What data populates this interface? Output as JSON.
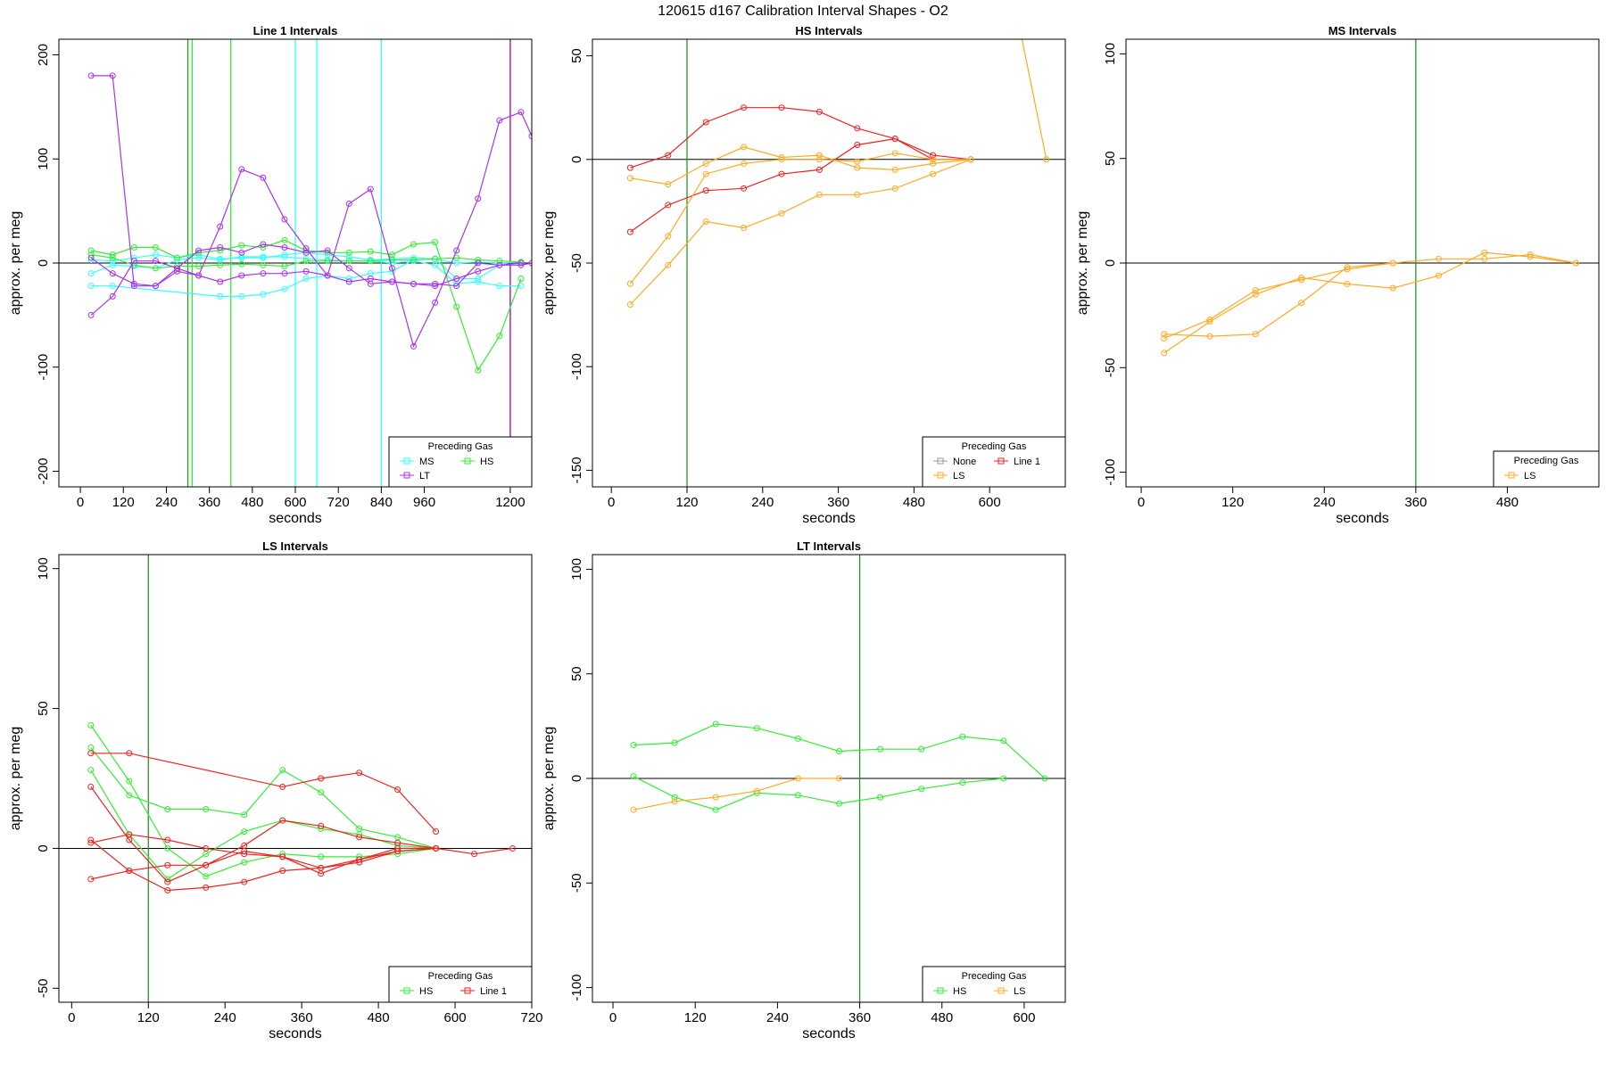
{
  "page_title": "120615   d167   Calibration Interval Shapes - O2",
  "colors": {
    "None": "#999999",
    "MS": "#33ffff",
    "HS": "#33ee33",
    "LT": "#aa33ee",
    "Line 1": "#ee2222",
    "LS": "#ffaa22",
    "vline_green": "#229922",
    "vline_cyan": "#33ffff",
    "vline_purple": "#aa00aa",
    "zero_line": "#000000"
  },
  "chart_data": [
    {
      "type": "line",
      "title": "Line 1 Intervals",
      "xlabel": "seconds",
      "ylabel": "approx. per meg",
      "xlim": [
        -60,
        1260
      ],
      "ylim": [
        -215,
        215
      ],
      "xticks": [
        0,
        120,
        240,
        360,
        480,
        600,
        720,
        840,
        960,
        1200
      ],
      "yticks": [
        -200,
        -100,
        0,
        100,
        200
      ],
      "zero_line": true,
      "legend": {
        "title": "Preceding Gas",
        "position": "bottom-right",
        "rows": [
          [
            "MS",
            "HS"
          ],
          [
            "LT"
          ]
        ]
      },
      "vlines": [
        {
          "x": 300,
          "color": "vline_green"
        },
        {
          "x": 312,
          "color": "HS"
        },
        {
          "x": 420,
          "color": "HS"
        },
        {
          "x": 600,
          "color": "vline_cyan"
        },
        {
          "x": 660,
          "color": "vline_cyan"
        },
        {
          "x": 840,
          "color": "vline_cyan"
        },
        {
          "x": 1200,
          "color": "vline_purple"
        }
      ],
      "series": [
        {
          "name": "MS",
          "x": [
            30,
            90,
            150,
            210,
            270,
            330,
            390,
            450,
            510,
            570,
            630,
            690,
            750,
            810,
            870,
            930,
            990,
            1050,
            1110,
            1170,
            1230
          ],
          "y": [
            -10,
            -2,
            -3,
            -5,
            3,
            5,
            3,
            6,
            6,
            6,
            4,
            3,
            2,
            2,
            0,
            2,
            -2,
            -20,
            -18,
            -22,
            -22
          ]
        },
        {
          "name": "MS",
          "x": [
            30,
            90,
            390,
            450,
            510,
            570,
            630,
            690,
            750,
            810,
            870,
            930,
            990,
            1050,
            1110,
            1170,
            1230
          ],
          "y": [
            -22,
            -22,
            -32,
            -32,
            -30,
            -25,
            -15,
            -12,
            -15,
            -10,
            -8,
            3,
            4,
            -15,
            -15,
            -2,
            0
          ]
        },
        {
          "name": "MS",
          "x": [
            30,
            90,
            150,
            210,
            270,
            330,
            390,
            450,
            510,
            570,
            630,
            690,
            750,
            810,
            870,
            930,
            990,
            1050,
            1110,
            1170,
            1230
          ],
          "y": [
            3,
            2,
            5,
            8,
            5,
            8,
            4,
            5,
            5,
            8,
            10,
            8,
            6,
            3,
            4,
            5,
            4,
            0,
            1,
            0,
            1
          ]
        },
        {
          "name": "HS",
          "x": [
            30,
            90,
            150,
            210,
            270,
            330,
            390,
            450,
            510,
            570,
            630,
            690,
            750,
            810,
            870,
            930,
            990,
            1050,
            1110,
            1170,
            1230
          ],
          "y": [
            12,
            8,
            15,
            15,
            5,
            10,
            12,
            17,
            15,
            22,
            12,
            10,
            10,
            11,
            8,
            18,
            20,
            -42,
            -103,
            -70,
            -15
          ]
        },
        {
          "name": "HS",
          "x": [
            30,
            90,
            150,
            210,
            270,
            330,
            390,
            450,
            510,
            570,
            630,
            690,
            750,
            810,
            870,
            930,
            990,
            1050,
            1110,
            1170,
            1230
          ],
          "y": [
            8,
            5,
            -2,
            -5,
            -3,
            -3,
            -2,
            -1,
            -2,
            -3,
            2,
            2,
            2,
            2,
            3,
            3,
            4,
            5,
            3,
            2,
            1
          ]
        },
        {
          "name": "LT",
          "x": [
            30,
            90,
            150,
            210,
            270,
            330,
            390,
            450,
            510,
            570,
            630,
            690,
            750,
            810,
            870,
            930,
            990,
            1050,
            1110,
            1170,
            1230,
            1260
          ],
          "y": [
            -50,
            -32,
            2,
            2,
            -5,
            12,
            15,
            10,
            18,
            15,
            10,
            12,
            -5,
            -20,
            -18,
            -20,
            -20,
            -22,
            0,
            -2,
            -2,
            0
          ]
        },
        {
          "name": "LT",
          "x": [
            30,
            90,
            150,
            210,
            270,
            330,
            390,
            450,
            510,
            570,
            630,
            690,
            750,
            810,
            870,
            930,
            990,
            1050,
            1110,
            1170,
            1230,
            1260
          ],
          "y": [
            180,
            180,
            -22,
            -22,
            -8,
            -12,
            35,
            90,
            82,
            42,
            14,
            -12,
            57,
            71,
            -5,
            -80,
            -38,
            12,
            62,
            137,
            145,
            122
          ]
        },
        {
          "name": "LT",
          "x": [
            30,
            90,
            150,
            210,
            270,
            330,
            390,
            450,
            510,
            570,
            630,
            690,
            750,
            810,
            870,
            930,
            990,
            1050,
            1110,
            1170,
            1230
          ],
          "y": [
            5,
            -10,
            -20,
            -22,
            -5,
            -12,
            -18,
            -12,
            -10,
            -10,
            -8,
            -12,
            -18,
            -15,
            -18,
            -20,
            -22,
            -15,
            -8,
            -2,
            0
          ]
        }
      ]
    },
    {
      "type": "line",
      "title": "HS Intervals",
      "xlabel": "seconds",
      "ylabel": "approx. per meg",
      "xlim": [
        -30,
        720
      ],
      "ylim": [
        -158,
        58
      ],
      "xticks": [
        0,
        120,
        240,
        360,
        480,
        600
      ],
      "yticks": [
        -150,
        -100,
        -50,
        0,
        50
      ],
      "zero_line": true,
      "legend": {
        "title": "Preceding Gas",
        "position": "bottom-right",
        "rows": [
          [
            "None",
            "Line 1"
          ],
          [
            "LS"
          ]
        ]
      },
      "vlines": [
        {
          "x": 120,
          "color": "vline_green"
        }
      ],
      "series": [
        {
          "name": "Line 1",
          "x": [
            30,
            90,
            150,
            210,
            270,
            330,
            390,
            450,
            510,
            570
          ],
          "y": [
            -4,
            2,
            18,
            25,
            25,
            23,
            15,
            10,
            2,
            0
          ]
        },
        {
          "name": "Line 1",
          "x": [
            30,
            90,
            150,
            210,
            270,
            330,
            390,
            450,
            510,
            570
          ],
          "y": [
            -35,
            -22,
            -15,
            -14,
            -7,
            -5,
            7,
            10,
            0,
            0
          ]
        },
        {
          "name": "LS",
          "x": [
            30,
            90,
            150,
            210,
            270,
            330,
            390,
            450,
            510,
            570
          ],
          "y": [
            -9,
            -12,
            -2,
            6,
            1,
            2,
            -4,
            -5,
            -2,
            0
          ]
        },
        {
          "name": "LS",
          "x": [
            30,
            90,
            150,
            210,
            270,
            330,
            390,
            450,
            510,
            570
          ],
          "y": [
            -60,
            -37,
            -7,
            -2,
            0,
            0,
            -1,
            3,
            0,
            0
          ]
        },
        {
          "name": "LS",
          "x": [
            30,
            90,
            150,
            210,
            270,
            330,
            390,
            450,
            510,
            570
          ],
          "y": [
            -70,
            -51,
            -30,
            -33,
            -26,
            -17,
            -17,
            -14,
            -7,
            0
          ]
        },
        {
          "name": "LS",
          "x": [
            30,
            650,
            690
          ],
          "y": [
            60,
            60,
            0
          ]
        }
      ]
    },
    {
      "type": "line",
      "title": "MS Intervals",
      "xlabel": "seconds",
      "ylabel": "approx. per meg",
      "xlim": [
        -20,
        600
      ],
      "ylim": [
        -107,
        107
      ],
      "xticks": [
        0,
        120,
        240,
        360,
        480
      ],
      "yticks": [
        -100,
        -50,
        0,
        50,
        100
      ],
      "zero_line": true,
      "legend": {
        "title": "Preceding Gas",
        "position": "bottom-right",
        "rows": [
          [
            "LS"
          ]
        ]
      },
      "vlines": [
        {
          "x": 360,
          "color": "vline_green"
        }
      ],
      "series": [
        {
          "name": "LS",
          "x": [
            30,
            90,
            150,
            210,
            270,
            330,
            390,
            450,
            510,
            570
          ],
          "y": [
            -43,
            -28,
            -15,
            -7,
            -10,
            -12,
            -6,
            5,
            3,
            0
          ]
        },
        {
          "name": "LS",
          "x": [
            30,
            90,
            150,
            210,
            270,
            330,
            390,
            450,
            510,
            570
          ],
          "y": [
            -36,
            -27,
            -13,
            -8,
            -3,
            0,
            2,
            2,
            4,
            0
          ]
        },
        {
          "name": "LS",
          "x": [
            30,
            90,
            150,
            210,
            270,
            330
          ],
          "y": [
            -34,
            -35,
            -34,
            -19,
            -2,
            0
          ]
        }
      ]
    },
    {
      "type": "line",
      "title": "LS Intervals",
      "xlabel": "seconds",
      "ylabel": "approx. per meg",
      "xlim": [
        -20,
        720
      ],
      "ylim": [
        -55,
        105
      ],
      "xticks": [
        0,
        120,
        240,
        360,
        480,
        600,
        720
      ],
      "yticks": [
        -50,
        0,
        50,
        100
      ],
      "zero_line": true,
      "legend": {
        "title": "Preceding Gas",
        "position": "bottom-right",
        "rows": [
          [
            "HS",
            "Line 1"
          ]
        ]
      },
      "vlines": [
        {
          "x": 120,
          "color": "vline_green"
        }
      ],
      "series": [
        {
          "name": "HS",
          "x": [
            30,
            90,
            150,
            210,
            270,
            330,
            390,
            450,
            510,
            570
          ],
          "y": [
            44,
            24,
            0,
            -10,
            -5,
            -2,
            -3,
            -3,
            -2,
            0
          ]
        },
        {
          "name": "HS",
          "x": [
            30,
            90,
            150,
            210,
            270,
            330,
            390,
            450,
            510,
            570
          ],
          "y": [
            36,
            19,
            14,
            14,
            12,
            28,
            20,
            7,
            4,
            0
          ]
        },
        {
          "name": "HS",
          "x": [
            30,
            90,
            150,
            210,
            270,
            330,
            390,
            450,
            510,
            570
          ],
          "y": [
            28,
            5,
            -11,
            -2,
            6,
            10,
            7,
            5,
            1,
            0
          ]
        },
        {
          "name": "Line 1",
          "x": [
            30,
            90,
            330,
            390,
            450,
            510,
            570
          ],
          "y": [
            34,
            34,
            22,
            25,
            27,
            21,
            6
          ]
        },
        {
          "name": "Line 1",
          "x": [
            30,
            90,
            150,
            210,
            270,
            330,
            390,
            450,
            510,
            570
          ],
          "y": [
            22,
            3,
            -12,
            -6,
            1,
            10,
            8,
            4,
            2,
            0
          ]
        },
        {
          "name": "Line 1",
          "x": [
            30,
            90,
            150,
            210,
            270,
            330,
            390,
            450,
            510,
            570,
            630,
            690
          ],
          "y": [
            -11,
            -8,
            -15,
            -14,
            -12,
            -8,
            -7,
            -5,
            -1,
            0,
            -2,
            0
          ]
        },
        {
          "name": "Line 1",
          "x": [
            30,
            90,
            150,
            210,
            270,
            330,
            390,
            450,
            510,
            570
          ],
          "y": [
            2,
            5,
            3,
            0,
            -2,
            -3,
            -9,
            -4,
            0,
            0
          ]
        },
        {
          "name": "Line 1",
          "x": [
            30,
            90,
            150,
            210,
            270,
            330,
            390,
            450,
            510,
            570
          ],
          "y": [
            3,
            -8,
            -6,
            -6,
            -1,
            -3,
            -7,
            -4,
            -1,
            0
          ]
        }
      ]
    },
    {
      "type": "line",
      "title": "LT Intervals",
      "xlabel": "seconds",
      "ylabel": "approx. per meg",
      "xlim": [
        -30,
        660
      ],
      "ylim": [
        -107,
        107
      ],
      "xticks": [
        0,
        120,
        240,
        360,
        480,
        600
      ],
      "yticks": [
        -100,
        -50,
        0,
        50,
        100
      ],
      "zero_line": true,
      "legend": {
        "title": "Preceding Gas",
        "position": "bottom-right",
        "rows": [
          [
            "HS",
            "LS"
          ]
        ]
      },
      "vlines": [
        {
          "x": 360,
          "color": "vline_green"
        }
      ],
      "series": [
        {
          "name": "HS",
          "x": [
            30,
            90,
            150,
            210,
            270,
            330,
            390,
            450,
            510,
            570,
            630
          ],
          "y": [
            16,
            17,
            26,
            24,
            19,
            13,
            14,
            14,
            20,
            18,
            0
          ]
        },
        {
          "name": "HS",
          "x": [
            30,
            90,
            150,
            210,
            270,
            330,
            390,
            450,
            510,
            570
          ],
          "y": [
            1,
            -9,
            -15,
            -7,
            -8,
            -12,
            -9,
            -5,
            -2,
            0
          ]
        },
        {
          "name": "LS",
          "x": [
            30,
            90,
            150,
            210,
            270,
            330
          ],
          "y": [
            -15,
            -11,
            -9,
            -6,
            0,
            0
          ]
        }
      ]
    }
  ]
}
